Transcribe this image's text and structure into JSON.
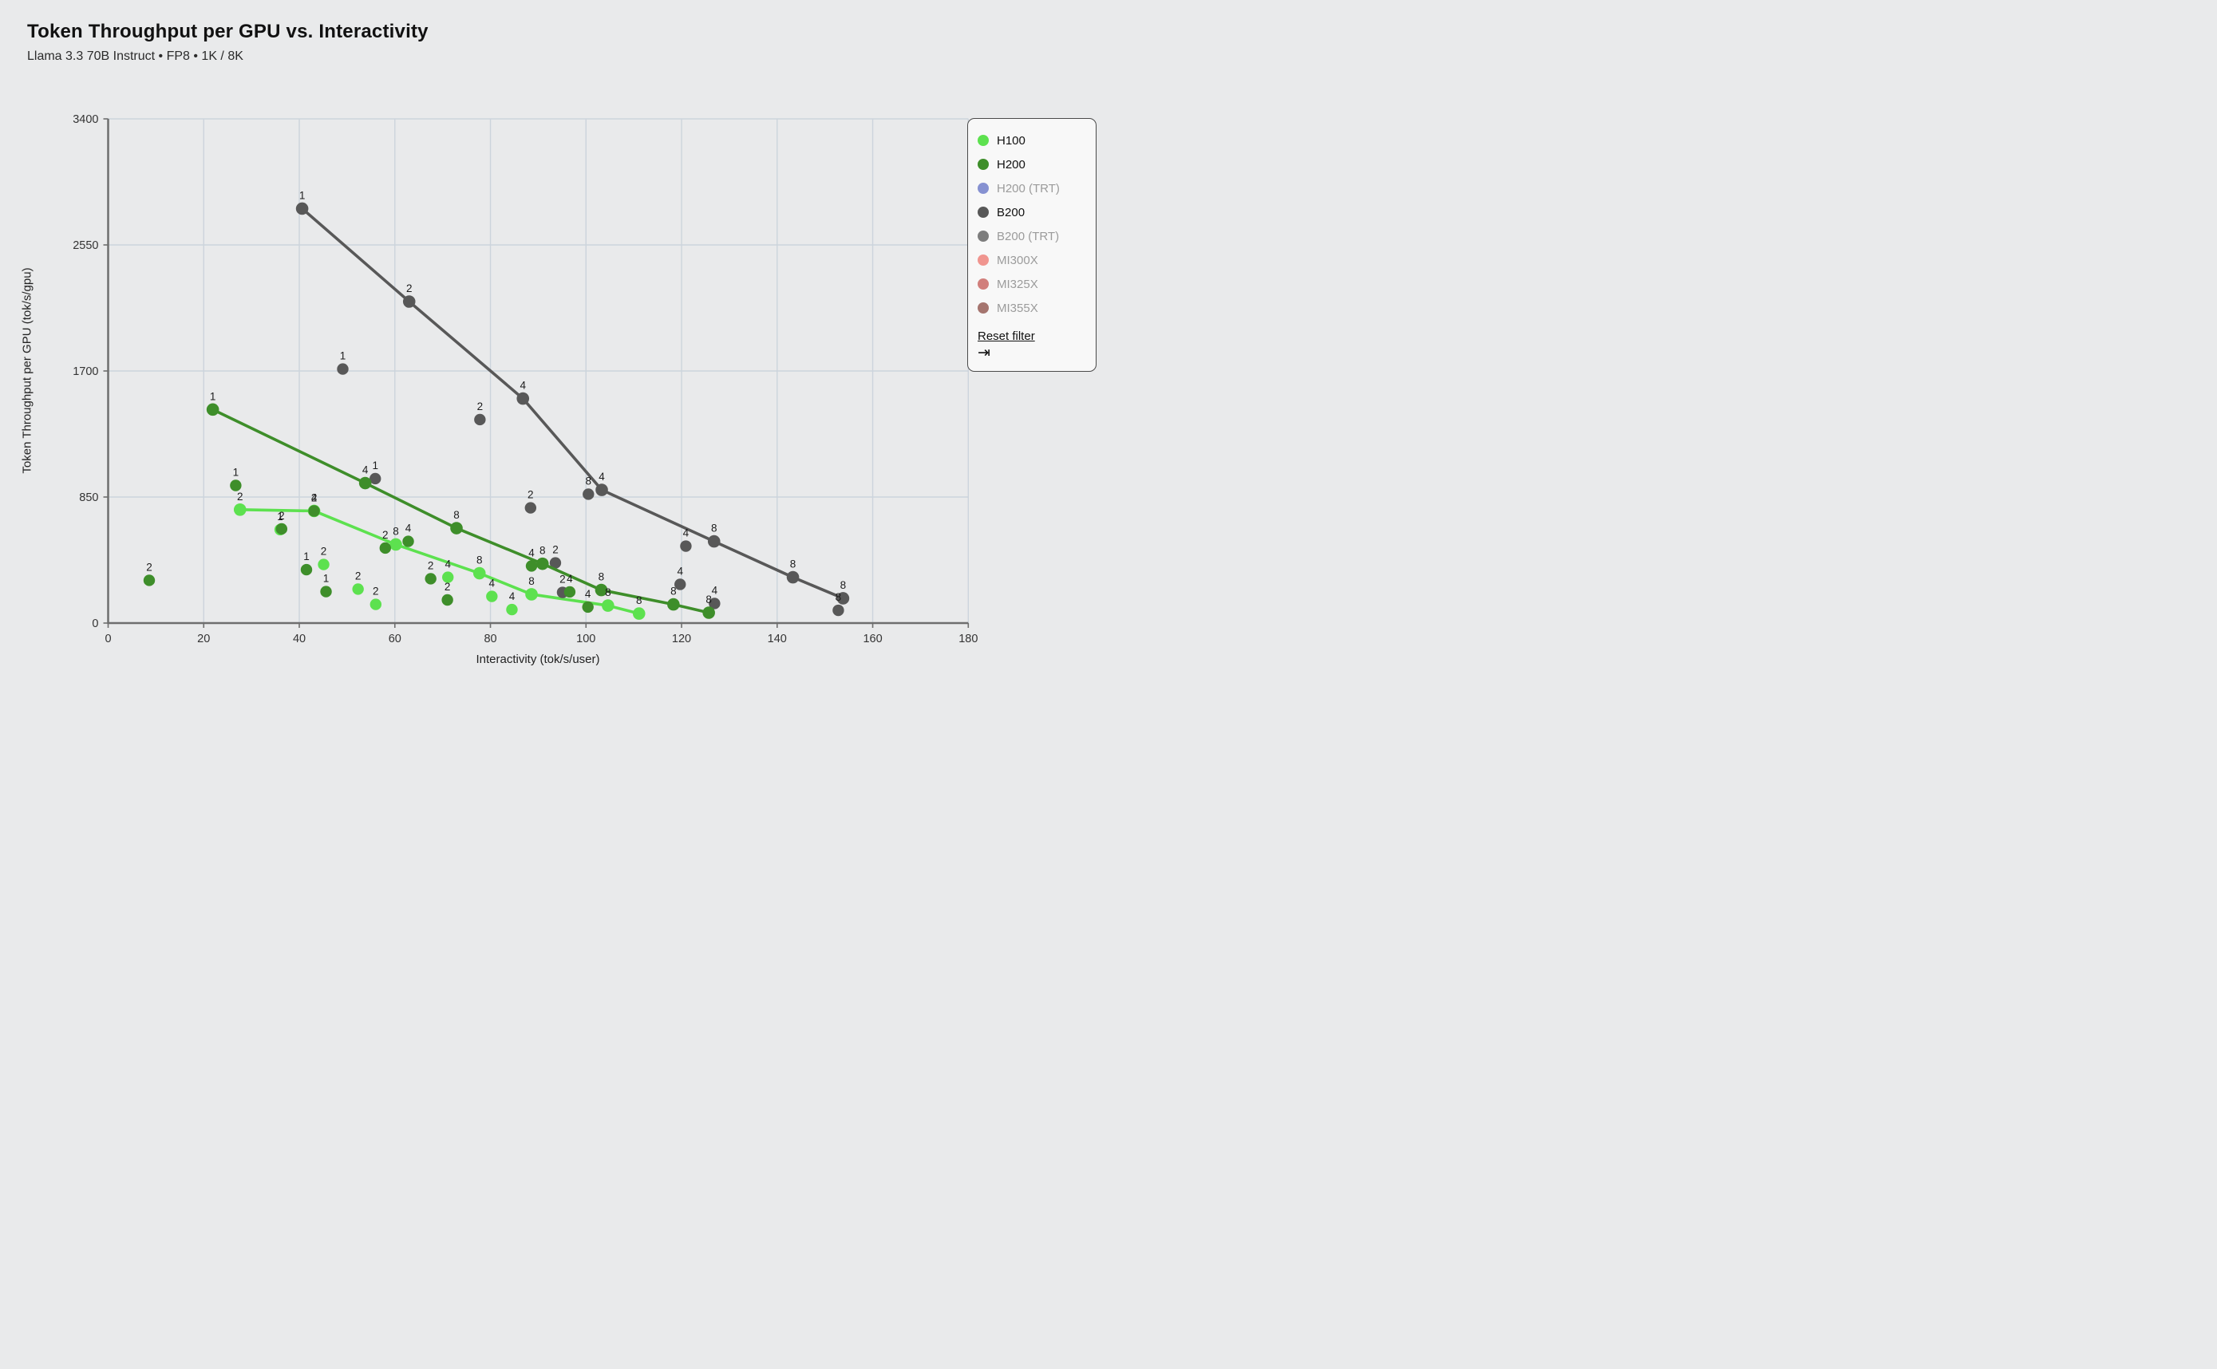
{
  "page": {
    "title": "Token Throughput per GPU vs. Interactivity",
    "subtitle": "Llama 3.3 70B Instruct • FP8 • 1K / 8K"
  },
  "chart_data": {
    "type": "scatter",
    "title": "Token Throughput per GPU vs. Interactivity",
    "subtitle": "Llama 3.3 70B Instruct • FP8 • 1K / 8K",
    "xlabel": "Interactivity (tok/s/user)",
    "ylabel": "Token Throughput per GPU (tok/s/gpu)",
    "xlim": [
      0,
      180
    ],
    "ylim": [
      0,
      3400
    ],
    "xticks": [
      0,
      20,
      40,
      60,
      80,
      100,
      120,
      140,
      160,
      180
    ],
    "yticks": [
      0,
      850,
      1700,
      2550,
      3400
    ],
    "grid": true,
    "legend_position": "top-right",
    "point_label_meaning": "GPUs / tensor-parallel size per config",
    "background": "#e9eaeb",
    "grid_color": "#ccd4dc",
    "axis_color": "#6e6e6e",
    "tick_label_color": "#333333",
    "point_label_color": "#1c1c1c",
    "series": [
      {
        "name": "H100",
        "color": "#5de14f",
        "active": true,
        "frontier_line": [
          {
            "x": 27.6,
            "y": 765,
            "label": "2"
          },
          {
            "x": 43.1,
            "y": 756,
            "label": "4"
          },
          {
            "x": 60.2,
            "y": 530,
            "label": "8"
          },
          {
            "x": 77.7,
            "y": 336,
            "label": "8"
          },
          {
            "x": 88.6,
            "y": 194,
            "label": "8"
          },
          {
            "x": 104.6,
            "y": 118,
            "label": "8"
          },
          {
            "x": 111.1,
            "y": 64,
            "label": "8"
          }
        ],
        "scatter": [
          {
            "x": 36.0,
            "y": 630,
            "label": "1"
          },
          {
            "x": 45.1,
            "y": 395,
            "label": "2"
          },
          {
            "x": 52.3,
            "y": 229,
            "label": "2"
          },
          {
            "x": 56.0,
            "y": 126,
            "label": "2"
          },
          {
            "x": 71.1,
            "y": 309,
            "label": "4"
          },
          {
            "x": 80.3,
            "y": 180,
            "label": "4"
          },
          {
            "x": 84.5,
            "y": 91,
            "label": "4"
          }
        ]
      },
      {
        "name": "H200",
        "color": "#3e8e2a",
        "active": true,
        "frontier_line": [
          {
            "x": 21.9,
            "y": 1440,
            "label": "1"
          },
          {
            "x": 53.8,
            "y": 944,
            "label": "4"
          },
          {
            "x": 72.9,
            "y": 640,
            "label": "8"
          },
          {
            "x": 90.9,
            "y": 400,
            "label": "8"
          },
          {
            "x": 103.2,
            "y": 223,
            "label": "8"
          },
          {
            "x": 118.3,
            "y": 126,
            "label": "8"
          },
          {
            "x": 125.7,
            "y": 70,
            "label": "8"
          }
        ],
        "scatter": [
          {
            "x": 8.6,
            "y": 288,
            "label": "2"
          },
          {
            "x": 26.7,
            "y": 928,
            "label": "1"
          },
          {
            "x": 36.3,
            "y": 635,
            "label": "2"
          },
          {
            "x": 41.5,
            "y": 360,
            "label": "1"
          },
          {
            "x": 43.1,
            "y": 756,
            "label": "2"
          },
          {
            "x": 45.6,
            "y": 212,
            "label": "1"
          },
          {
            "x": 58.0,
            "y": 506,
            "label": "2"
          },
          {
            "x": 62.8,
            "y": 551,
            "label": "4"
          },
          {
            "x": 67.5,
            "y": 299,
            "label": "2"
          },
          {
            "x": 71.0,
            "y": 156,
            "label": "2"
          },
          {
            "x": 88.6,
            "y": 385,
            "label": "4"
          },
          {
            "x": 96.6,
            "y": 210,
            "label": "4"
          },
          {
            "x": 100.4,
            "y": 108,
            "label": "4"
          }
        ]
      },
      {
        "name": "H200 (TRT)",
        "color": "#8691d1",
        "active": false
      },
      {
        "name": "B200",
        "color": "#585858",
        "active": true,
        "frontier_line": [
          {
            "x": 40.6,
            "y": 2795,
            "label": "1"
          },
          {
            "x": 63.0,
            "y": 2168,
            "label": "2"
          },
          {
            "x": 86.8,
            "y": 1514,
            "label": "4"
          },
          {
            "x": 103.3,
            "y": 898,
            "label": "4"
          },
          {
            "x": 126.8,
            "y": 551,
            "label": "8"
          },
          {
            "x": 143.3,
            "y": 309,
            "label": "8"
          },
          {
            "x": 153.8,
            "y": 167,
            "label": "8"
          }
        ],
        "scatter": [
          {
            "x": 49.1,
            "y": 1713,
            "label": "1"
          },
          {
            "x": 55.9,
            "y": 974,
            "label": "1"
          },
          {
            "x": 77.8,
            "y": 1372,
            "label": "2"
          },
          {
            "x": 88.4,
            "y": 777,
            "label": "2"
          },
          {
            "x": 93.6,
            "y": 406,
            "label": "2"
          },
          {
            "x": 95.1,
            "y": 207,
            "label": "2"
          },
          {
            "x": 100.5,
            "y": 869,
            "label": "8"
          },
          {
            "x": 119.7,
            "y": 261,
            "label": "4"
          },
          {
            "x": 120.9,
            "y": 519,
            "label": "4"
          },
          {
            "x": 126.9,
            "y": 132,
            "label": "4"
          },
          {
            "x": 152.8,
            "y": 86,
            "label": "8"
          }
        ]
      },
      {
        "name": "B200 (TRT)",
        "color": "#7d7d7d",
        "active": false
      },
      {
        "name": "MI300X",
        "color": "#f0958f",
        "active": false
      },
      {
        "name": "MI325X",
        "color": "#d17f7c",
        "active": false
      },
      {
        "name": "MI355X",
        "color": "#a5756f",
        "active": false
      }
    ],
    "legend": {
      "reset_label": "Reset filter",
      "tab_icon": "⇥"
    }
  }
}
